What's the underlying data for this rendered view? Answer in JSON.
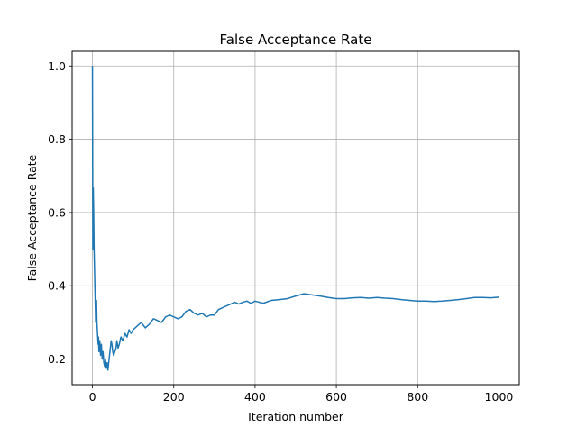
{
  "chart_data": {
    "type": "line",
    "title": "False Acceptance Rate",
    "xlabel": "Iteration number",
    "ylabel": "False Acceptance Rate",
    "xlim": [
      -50,
      1050
    ],
    "ylim": [
      0.13,
      1.04
    ],
    "xticks": [
      0,
      200,
      400,
      600,
      800,
      1000
    ],
    "yticks": [
      0.2,
      0.4,
      0.6,
      0.8,
      1.0
    ],
    "xtick_labels": [
      "0",
      "200",
      "400",
      "600",
      "800",
      "1000"
    ],
    "ytick_labels": [
      "0.2",
      "0.4",
      "0.6",
      "0.8",
      "1.0"
    ],
    "grid": true,
    "series": [
      {
        "color": "#1f77b4",
        "x": [
          0,
          1,
          2,
          3,
          4,
          5,
          6,
          7,
          8,
          9,
          10,
          11,
          12,
          13,
          14,
          15,
          16,
          18,
          20,
          22,
          24,
          26,
          28,
          30,
          32,
          34,
          36,
          38,
          40,
          42,
          44,
          46,
          48,
          50,
          52,
          55,
          58,
          60,
          63,
          66,
          70,
          75,
          80,
          85,
          90,
          95,
          100,
          110,
          120,
          130,
          140,
          150,
          160,
          170,
          180,
          190,
          200,
          210,
          220,
          230,
          240,
          250,
          260,
          270,
          280,
          290,
          300,
          310,
          320,
          330,
          340,
          350,
          360,
          370,
          380,
          390,
          400,
          420,
          440,
          460,
          480,
          500,
          520,
          540,
          560,
          580,
          600,
          620,
          640,
          660,
          680,
          700,
          720,
          740,
          760,
          780,
          800,
          820,
          840,
          860,
          880,
          900,
          920,
          940,
          960,
          980,
          1000
        ],
        "y": [
          1.0,
          0.5,
          0.667,
          0.6,
          0.5,
          0.45,
          0.4,
          0.35,
          0.3,
          0.33,
          0.36,
          0.3,
          0.28,
          0.26,
          0.24,
          0.26,
          0.22,
          0.25,
          0.21,
          0.24,
          0.2,
          0.22,
          0.19,
          0.18,
          0.2,
          0.175,
          0.19,
          0.17,
          0.19,
          0.21,
          0.23,
          0.25,
          0.24,
          0.22,
          0.21,
          0.22,
          0.23,
          0.25,
          0.23,
          0.24,
          0.26,
          0.25,
          0.27,
          0.26,
          0.28,
          0.27,
          0.28,
          0.29,
          0.3,
          0.285,
          0.295,
          0.31,
          0.305,
          0.3,
          0.315,
          0.32,
          0.315,
          0.31,
          0.315,
          0.33,
          0.335,
          0.325,
          0.32,
          0.325,
          0.315,
          0.32,
          0.32,
          0.335,
          0.34,
          0.345,
          0.35,
          0.355,
          0.35,
          0.355,
          0.358,
          0.352,
          0.358,
          0.352,
          0.36,
          0.362,
          0.365,
          0.372,
          0.378,
          0.375,
          0.372,
          0.368,
          0.365,
          0.365,
          0.367,
          0.368,
          0.366,
          0.368,
          0.366,
          0.365,
          0.362,
          0.36,
          0.358,
          0.358,
          0.357,
          0.358,
          0.36,
          0.362,
          0.365,
          0.368,
          0.368,
          0.367,
          0.369
        ]
      }
    ]
  }
}
